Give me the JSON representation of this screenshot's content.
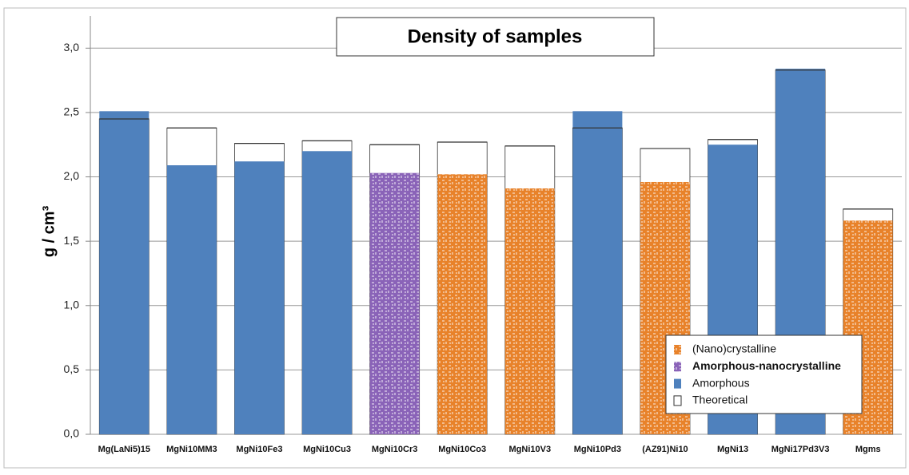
{
  "chart_data": {
    "type": "bar",
    "title": "Density of samples",
    "ylabel": "g / cm³",
    "categories": [
      "Mg(LaNi5)15",
      "MgNi10MM3",
      "MgNi10Fe3",
      "MgNi10Cu3",
      "MgNi10Cr3",
      "MgNi10Co3",
      "MgNi10V3",
      "MgNi10Pd3",
      "(AZ91)Ni10",
      "MgNi13",
      "MgNi17Pd3V3",
      "Mgms"
    ],
    "series": [
      {
        "name": "(Nano)crystalline",
        "color": "#e8822a",
        "pattern": true,
        "values": [
          null,
          null,
          null,
          null,
          null,
          2.02,
          1.91,
          null,
          1.96,
          null,
          null,
          1.66
        ]
      },
      {
        "name": "Amorphous-nanocrystalline",
        "color": "#8a63b8",
        "pattern": true,
        "values": [
          null,
          null,
          null,
          null,
          2.03,
          null,
          null,
          null,
          null,
          null,
          null,
          null
        ]
      },
      {
        "name": "Amorphous",
        "color": "#4f81bd",
        "pattern": false,
        "values": [
          2.51,
          2.09,
          2.12,
          2.2,
          null,
          null,
          null,
          2.51,
          null,
          2.25,
          2.84,
          null
        ]
      },
      {
        "name": "Theoretical",
        "color": "#ffffff",
        "pattern": false,
        "outline": true,
        "values": [
          2.45,
          2.38,
          2.26,
          2.28,
          2.25,
          2.27,
          2.24,
          2.38,
          2.22,
          2.29,
          2.83,
          1.75
        ]
      }
    ],
    "ylim": [
      0,
      3.25
    ],
    "yticks": [
      {
        "value": 0,
        "label": "0,0"
      },
      {
        "value": 0.5,
        "label": "0,5"
      },
      {
        "value": 1,
        "label": "1,0"
      },
      {
        "value": 1.5,
        "label": "1,5"
      },
      {
        "value": 2,
        "label": "2,0"
      },
      {
        "value": 2.5,
        "label": "2,5"
      },
      {
        "value": 3,
        "label": "3,0"
      }
    ],
    "grid": true,
    "legend": "lower right"
  }
}
